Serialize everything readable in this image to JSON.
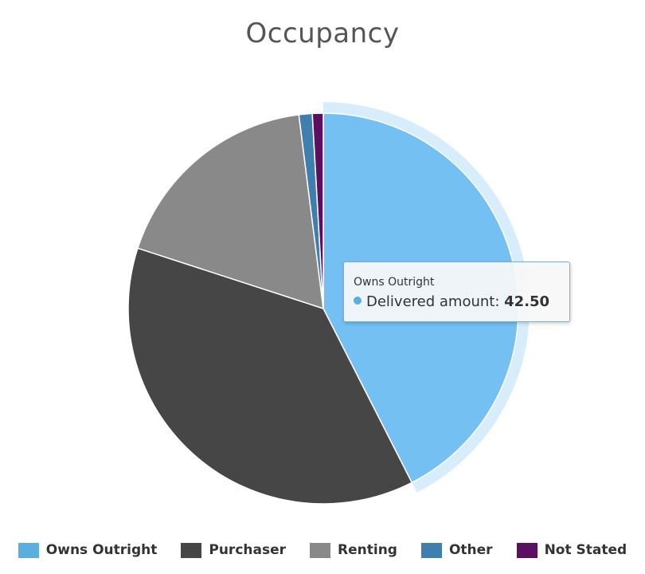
{
  "chart_data": {
    "type": "pie",
    "title": "Occupancy",
    "series_name": "Delivered amount",
    "slices": [
      {
        "name": "Owns Outright",
        "value": 42.5,
        "color": "#74c0f2",
        "legend_color": "#5aaee0"
      },
      {
        "name": "Purchaser",
        "value": 37.5,
        "color": "#464646",
        "legend_color": "#464646"
      },
      {
        "name": "Renting",
        "value": 18.0,
        "color": "#898989",
        "legend_color": "#898989"
      },
      {
        "name": "Other",
        "value": 1.1,
        "color": "#3f7fb0",
        "legend_color": "#3f7fb0"
      },
      {
        "name": "Not Stated",
        "value": 0.9,
        "color": "#5b0f63",
        "legend_color": "#5b0f63"
      }
    ],
    "highlighted_slice": "Owns Outright",
    "legend_position": "bottom"
  },
  "tooltip": {
    "title": "Owns Outright",
    "series_label": "Delivered amount:",
    "value_text": "42.50",
    "dot_color": "#5aaee0"
  }
}
